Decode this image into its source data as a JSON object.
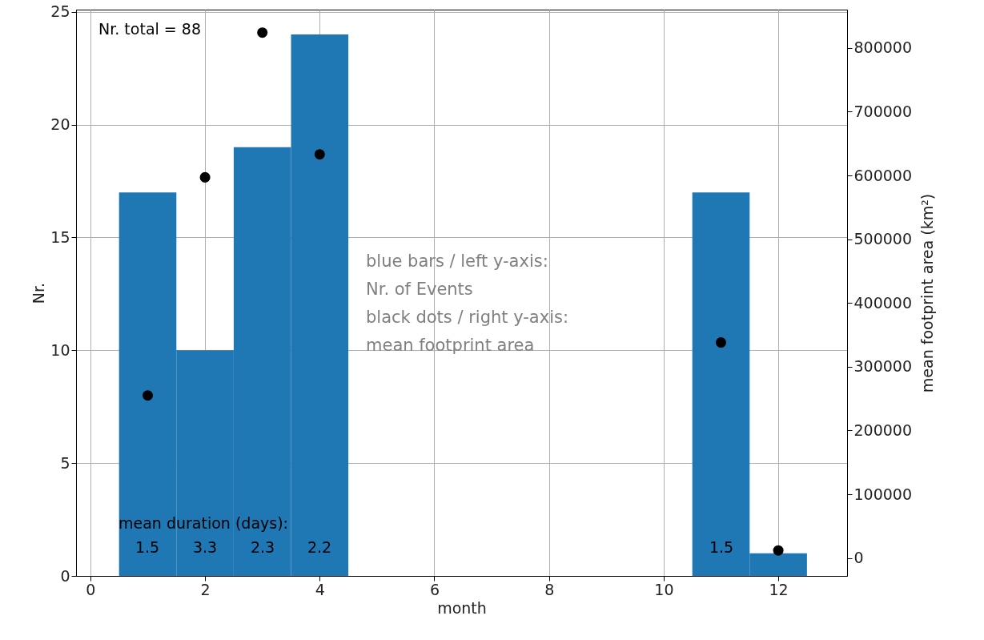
{
  "chart_data": {
    "type": "histogram",
    "xlabel": "month",
    "ylabel": "Nr.",
    "y2label": "mean footprint area (km²)",
    "bins": [
      0.5,
      1.5,
      2.5,
      3.5,
      4.5,
      5.5,
      6.5,
      7.5,
      8.5,
      9.5,
      10.5,
      11.5,
      12.5
    ],
    "series": [
      {
        "type": "histogram",
        "color": "#1f77b4",
        "values": [
          17,
          10,
          19,
          24,
          0,
          0,
          0,
          0,
          0,
          0,
          17,
          1
        ]
      },
      {
        "type": "scatter",
        "axis": "y2",
        "color": "#000000",
        "x": [
          1,
          2,
          3,
          4,
          11,
          12
        ],
        "values": [
          255000,
          597000,
          824000,
          633000,
          338000,
          12000
        ]
      }
    ],
    "xlim": [
      -0.25,
      13.2
    ],
    "xticks": [
      0,
      2,
      4,
      6,
      8,
      10,
      12
    ],
    "ylim": [
      0,
      25.1
    ],
    "yticks": [
      0,
      5,
      10,
      15,
      20,
      25
    ],
    "y2lim": [
      -28000,
      860000
    ],
    "y2ticks": [
      0,
      100000,
      200000,
      300000,
      400000,
      500000,
      600000,
      700000,
      800000
    ],
    "grid": true,
    "marker": "circle",
    "annotations": [
      "Nr. total = 88",
      "blue bars / left y-axis:",
      "Nr. of Events",
      "black dots / right y-axis:",
      "mean footprint area",
      "mean duration (days):",
      "1.5",
      "3.3",
      "2.3",
      "2.2",
      "1.5"
    ]
  }
}
